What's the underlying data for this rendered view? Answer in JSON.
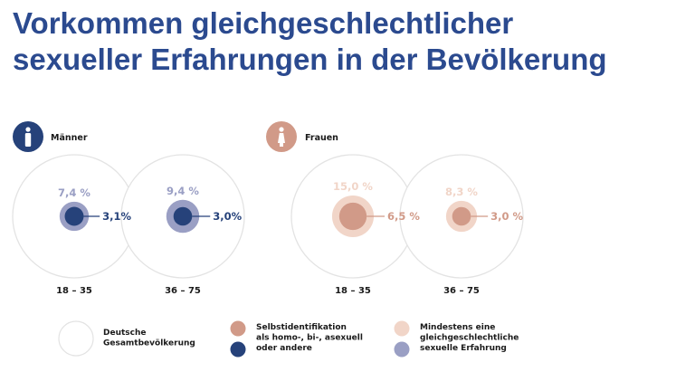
{
  "title_line1": "Vorkommen gleichgeschlechtlicher",
  "title_line2": "sexueller Erfahrungen in der Bevölkerung",
  "colors": {
    "title": "#2b4a8f",
    "men_dark": "#26427a",
    "men_light": "#9a9fc4",
    "women_dark": "#d19a88",
    "women_light": "#f1d5c8",
    "outline": "#e3e3e3"
  },
  "chart_data": {
    "type": "bubble",
    "panels": [
      {
        "name": "Männer",
        "groups": [
          {
            "age": "18 – 35",
            "experience": 7.4,
            "experience_label": "7,4 %",
            "identification": 3.1,
            "identification_label": "3,1%"
          },
          {
            "age": "36 – 75",
            "experience": 9.4,
            "experience_label": "9,4 %",
            "identification": 3.0,
            "identification_label": "3,0%"
          }
        ]
      },
      {
        "name": "Frauen",
        "groups": [
          {
            "age": "18 – 35",
            "experience": 15.0,
            "experience_label": "15,0 %",
            "identification": 6.5,
            "identification_label": "6,5 %"
          },
          {
            "age": "36 – 75",
            "experience": 8.3,
            "experience_label": "8,3 %",
            "identification": 3.0,
            "identification_label": "3,0 %"
          }
        ]
      }
    ],
    "legend": [
      {
        "key": "population",
        "text": "Deutsche Gesamtbevölkerung",
        "lines": [
          "Deutsche",
          "Gesamtbevölkerung"
        ]
      },
      {
        "key": "identification",
        "text": "Selbstidentifikation als homo-, bi-, asexuell oder andere",
        "lines": [
          "Selbstidentifikation",
          "als homo-, bi-, asexuell",
          "oder andere"
        ]
      },
      {
        "key": "experience",
        "text": "Mindestens eine gleichgeschlechtliche sexuelle Erfahrung",
        "lines": [
          "Mindestens eine",
          "gleichgeschlechtliche",
          "sexuelle Erfahrung"
        ]
      }
    ],
    "icons": [
      "male-person-icon",
      "female-person-icon"
    ]
  }
}
